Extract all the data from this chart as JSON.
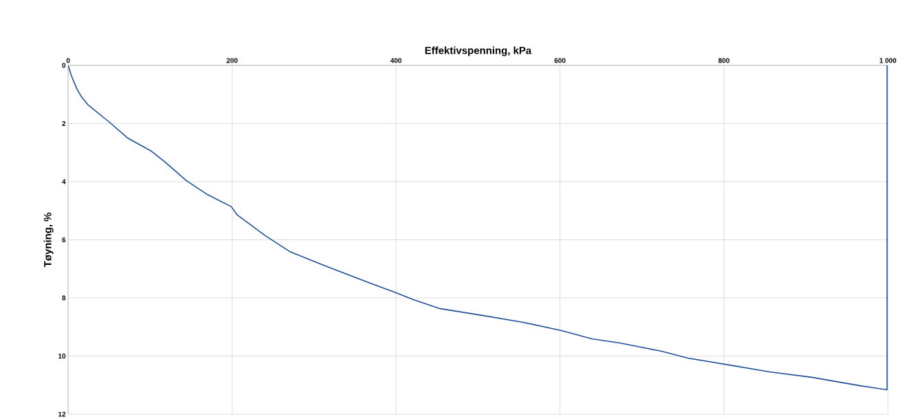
{
  "chart_data": {
    "type": "line",
    "xlabel": "Effektivspenning, kPa",
    "ylabel": "Tøyning, %",
    "x": [
      0,
      4,
      11,
      16,
      24,
      51,
      72,
      102,
      118,
      144,
      169,
      199,
      206,
      240,
      270,
      311,
      370,
      400,
      421,
      454,
      505,
      555,
      601,
      639,
      673,
      723,
      756,
      807,
      857,
      907,
      966,
      999,
      999
    ],
    "series": [
      {
        "color": "#1f4e99",
        "values": [
          0,
          0.36,
          0.83,
          1.07,
          1.35,
          1.97,
          2.49,
          2.96,
          3.32,
          3.96,
          4.43,
          4.86,
          5.14,
          5.85,
          6.4,
          6.87,
          7.51,
          7.82,
          8.06,
          8.37,
          8.6,
          8.84,
          9.12,
          9.41,
          9.55,
          9.83,
          10.07,
          10.31,
          10.55,
          10.73,
          11.02,
          11.16,
          0
        ]
      }
    ],
    "xlim": [
      0,
      1000
    ],
    "ylim": [
      12,
      0
    ],
    "xticks": [
      0,
      200,
      400,
      600,
      800,
      {
        "value": 1000,
        "label": "1 000"
      }
    ],
    "yticks": [
      0,
      2,
      4,
      6,
      8,
      10,
      12
    ],
    "grid": true,
    "marker": "none",
    "line_style": "solid"
  }
}
